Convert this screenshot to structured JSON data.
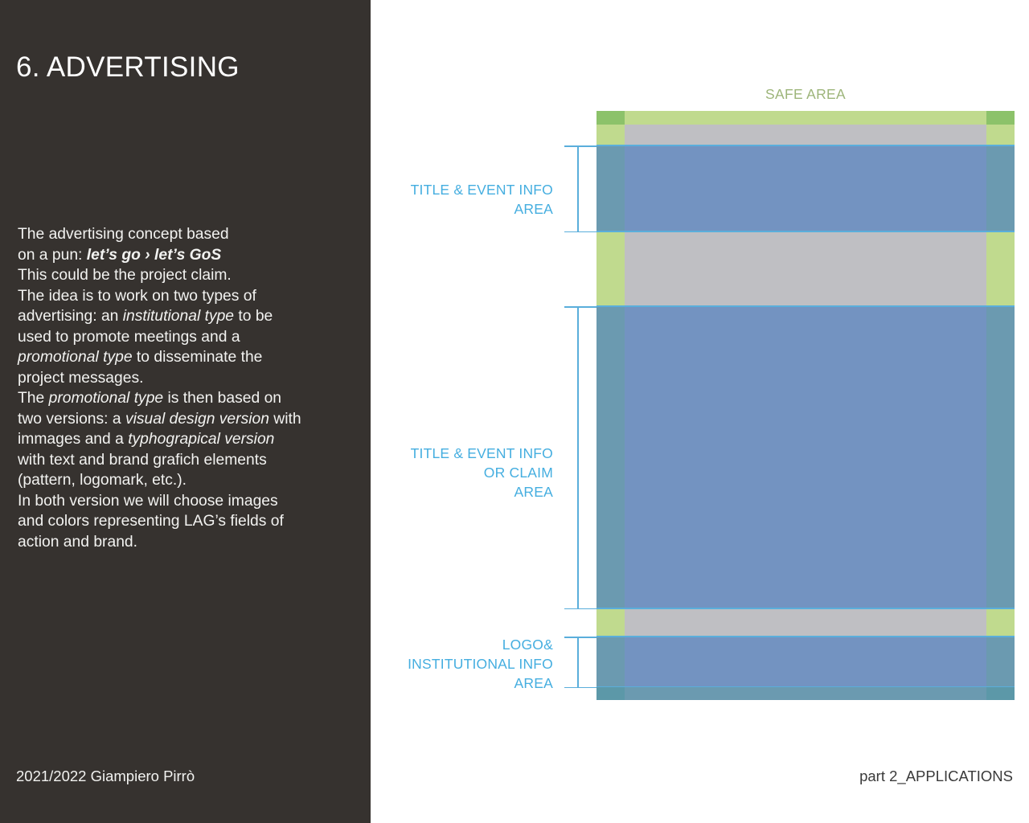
{
  "page": {
    "title": "6. ADVERTISING",
    "footer_left": "2021/2022 Giampiero Pirrò",
    "footer_right": "part 2_APPLICATIONS"
  },
  "body": {
    "lines": [
      [
        {
          "t": "The advertising concept based",
          "s": "normal"
        }
      ],
      [
        {
          "t": "on a pun: ",
          "s": "normal"
        },
        {
          "t": "let’s go › let’s GoS",
          "s": "bolditalic"
        }
      ],
      [
        {
          "t": "This could be the project claim.",
          "s": "normal"
        }
      ],
      [
        {
          "t": "The idea is to work on two types of",
          "s": "normal"
        }
      ],
      [
        {
          "t": "advertising: an ",
          "s": "normal"
        },
        {
          "t": "institutional type",
          "s": "italic"
        },
        {
          "t": " to be",
          "s": "normal"
        }
      ],
      [
        {
          "t": "used to promote meetings and a",
          "s": "normal"
        }
      ],
      [
        {
          "t": "promotional type",
          "s": "italic"
        },
        {
          "t": " to disseminate the",
          "s": "normal"
        }
      ],
      [
        {
          "t": "project messages.",
          "s": "normal"
        }
      ],
      [
        {
          "t": "The ",
          "s": "normal"
        },
        {
          "t": "promotional type",
          "s": "italic"
        },
        {
          "t": " is then based on",
          "s": "normal"
        }
      ],
      [
        {
          "t": "two versions: a ",
          "s": "normal"
        },
        {
          "t": "visual design version",
          "s": "italic"
        },
        {
          "t": " with",
          "s": "normal"
        }
      ],
      [
        {
          "t": "immages and a ",
          "s": "normal"
        },
        {
          "t": "typhograpical version",
          "s": "italic"
        }
      ],
      [
        {
          "t": "with text and brand grafich elements",
          "s": "normal"
        }
      ],
      [
        {
          "t": "(pattern, logomark, etc.).",
          "s": "normal"
        }
      ],
      [
        {
          "t": "In both version we will choose images",
          "s": "normal"
        }
      ],
      [
        {
          "t": "and colors representing LAG’s fields of",
          "s": "normal"
        }
      ],
      [
        {
          "t": "action and brand.",
          "s": "normal"
        }
      ]
    ]
  },
  "diagram": {
    "safe_area_label": "SAFE AREA",
    "labels": {
      "title_event": [
        "TITLE & EVENT INFO",
        "AREA"
      ],
      "title_claim": [
        "TITLE & EVENT INFO",
        "OR CLAIM",
        "AREA"
      ],
      "logo_info": [
        "LOGO&",
        "INSTITUTIONAL INFO",
        "AREA"
      ]
    },
    "colors": {
      "safe_margin": "#c0da8e",
      "safe_corner": "#8cc26a",
      "content_blue": "#7393c1",
      "guide_line": "#5aaedb",
      "background_gray": "#bfbfc3",
      "label_text": "#45aee0",
      "safe_label_text": "#9db57a"
    }
  }
}
